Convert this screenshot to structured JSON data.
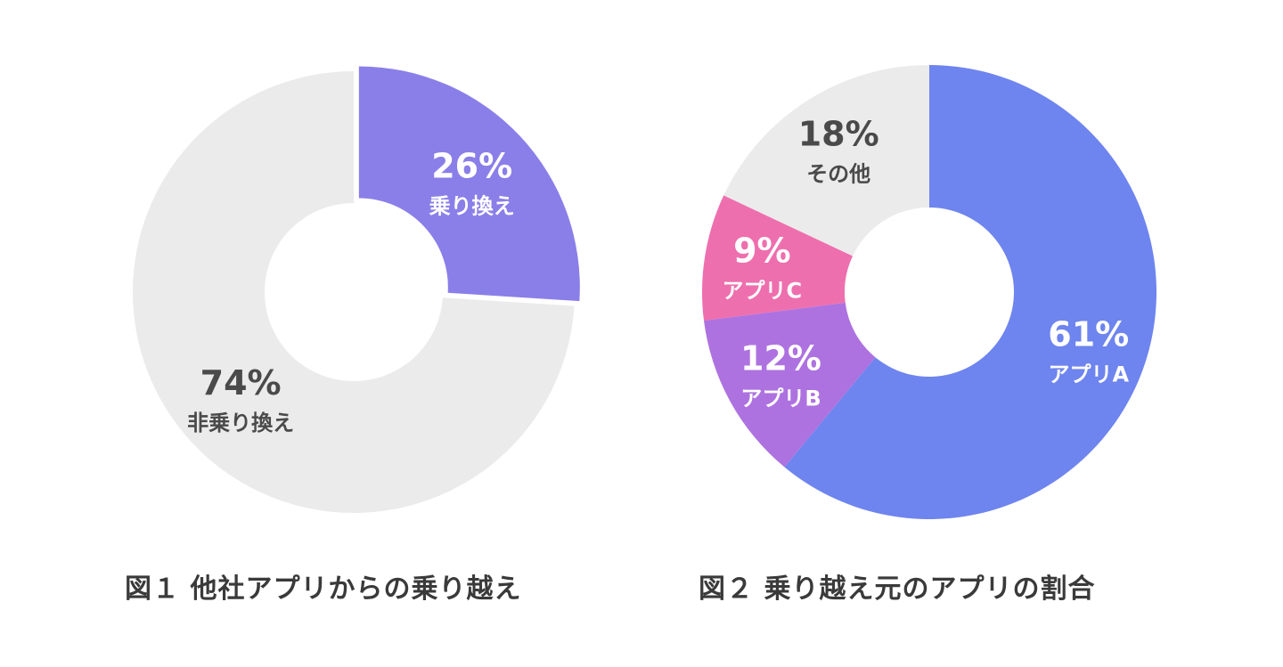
{
  "chart_data": [
    {
      "type": "pie",
      "title": "図１ 他社アプリからの乗り越え",
      "categories": [
        "乗り換え",
        "非乗り換え"
      ],
      "values": [
        26,
        74
      ],
      "value_labels": [
        "26%",
        "74%"
      ],
      "colors": [
        "#8a7fe8",
        "#ebebeb"
      ],
      "label_colors": [
        "#ffffff",
        "#4a4a4a"
      ]
    },
    {
      "type": "pie",
      "title": "図２ 乗り越え元のアプリの割合",
      "categories": [
        "アプリA",
        "アプリB",
        "アプリC",
        "その他"
      ],
      "values": [
        61,
        12,
        9,
        18
      ],
      "value_labels": [
        "61%",
        "12%",
        "9%",
        "18%"
      ],
      "colors": [
        "#6e84ee",
        "#ad72e0",
        "#ee6fae",
        "#ebebeb"
      ],
      "label_colors": [
        "#ffffff",
        "#ffffff",
        "#ffffff",
        "#4a4a4a"
      ]
    }
  ]
}
